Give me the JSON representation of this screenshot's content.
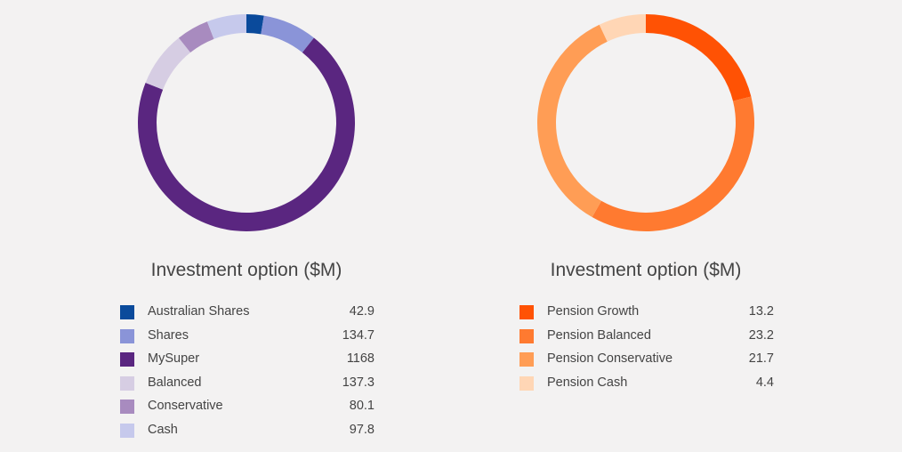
{
  "chart_data": [
    {
      "type": "pie",
      "style": "donut",
      "title": "Investment option ($M)",
      "legend_position": "bottom",
      "categories": [
        "Australian Shares",
        "Shares",
        "MySuper",
        "Balanced",
        "Conservative",
        "Cash"
      ],
      "values": [
        42.9,
        134.7,
        1168,
        137.3,
        80.1,
        97.8
      ],
      "value_labels": [
        "42.9",
        "134.7",
        "1168",
        "137.3",
        "80.1",
        "97.8"
      ],
      "colors": [
        "#0a4a9b",
        "#8a94d8",
        "#5a2680",
        "#d6cde3",
        "#a88bbf",
        "#c6c9ec"
      ]
    },
    {
      "type": "pie",
      "style": "donut",
      "title": "Investment option ($M)",
      "legend_position": "bottom",
      "categories": [
        "Pension Growth",
        "Pension Balanced",
        "Pension Conservative",
        "Pension Cash"
      ],
      "values": [
        13.2,
        23.2,
        21.7,
        4.4
      ],
      "value_labels": [
        "13.2",
        "23.2",
        "21.7",
        "4.4"
      ],
      "colors": [
        "#ff5204",
        "#ff7a30",
        "#ff9d55",
        "#ffd6b5"
      ]
    }
  ]
}
